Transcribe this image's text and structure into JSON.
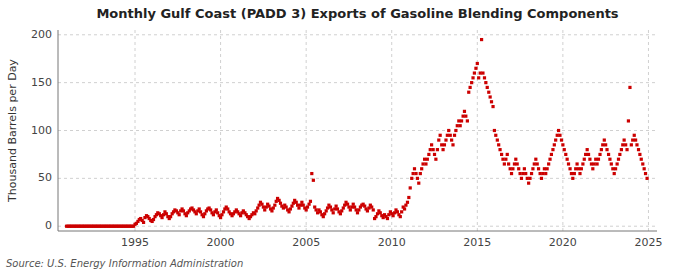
{
  "chart_data": {
    "type": "scatter",
    "title": "Monthly Gulf Coast (PADD 3) Exports of Gasoline Blending Components",
    "y_label": "Thousand Barrels per Day",
    "source": "Source: U.S. Energy Information Administration",
    "color": "#cc0000",
    "marker": "square",
    "grid": true,
    "xlim": [
      1990.5,
      2025.5
    ],
    "ylim": [
      -5,
      205
    ],
    "xticks": [
      1995,
      2000,
      2005,
      2010,
      2015,
      2020,
      2025
    ],
    "yticks": [
      0,
      50,
      100,
      150,
      200
    ],
    "x": [
      1991.0,
      1991.08,
      1991.17,
      1991.25,
      1991.33,
      1991.42,
      1991.5,
      1991.58,
      1991.67,
      1991.75,
      1991.83,
      1991.92,
      1992.0,
      1992.08,
      1992.17,
      1992.25,
      1992.33,
      1992.42,
      1992.5,
      1992.58,
      1992.67,
      1992.75,
      1992.83,
      1992.92,
      1993.0,
      1993.08,
      1993.17,
      1993.25,
      1993.33,
      1993.42,
      1993.5,
      1993.58,
      1993.67,
      1993.75,
      1993.83,
      1993.92,
      1994.0,
      1994.08,
      1994.17,
      1994.25,
      1994.33,
      1994.42,
      1994.5,
      1994.58,
      1994.67,
      1994.75,
      1994.83,
      1994.92,
      1995.0,
      1995.08,
      1995.17,
      1995.25,
      1995.33,
      1995.42,
      1995.5,
      1995.58,
      1995.67,
      1995.75,
      1995.83,
      1995.92,
      1996.0,
      1996.08,
      1996.17,
      1996.25,
      1996.33,
      1996.42,
      1996.5,
      1996.58,
      1996.67,
      1996.75,
      1996.83,
      1996.92,
      1997.0,
      1997.08,
      1997.17,
      1997.25,
      1997.33,
      1997.42,
      1997.5,
      1997.58,
      1997.67,
      1997.75,
      1997.83,
      1997.92,
      1998.0,
      1998.08,
      1998.17,
      1998.25,
      1998.33,
      1998.42,
      1998.5,
      1998.58,
      1998.67,
      1998.75,
      1998.83,
      1998.92,
      1999.0,
      1999.08,
      1999.17,
      1999.25,
      1999.33,
      1999.42,
      1999.5,
      1999.58,
      1999.67,
      1999.75,
      1999.83,
      1999.92,
      2000.0,
      2000.08,
      2000.17,
      2000.25,
      2000.33,
      2000.42,
      2000.5,
      2000.58,
      2000.67,
      2000.75,
      2000.83,
      2000.92,
      2001.0,
      2001.08,
      2001.17,
      2001.25,
      2001.33,
      2001.42,
      2001.5,
      2001.58,
      2001.67,
      2001.75,
      2001.83,
      2001.92,
      2002.0,
      2002.08,
      2002.17,
      2002.25,
      2002.33,
      2002.42,
      2002.5,
      2002.58,
      2002.67,
      2002.75,
      2002.83,
      2002.92,
      2003.0,
      2003.08,
      2003.17,
      2003.25,
      2003.33,
      2003.42,
      2003.5,
      2003.58,
      2003.67,
      2003.75,
      2003.83,
      2003.92,
      2004.0,
      2004.08,
      2004.17,
      2004.25,
      2004.33,
      2004.42,
      2004.5,
      2004.58,
      2004.67,
      2004.75,
      2004.83,
      2004.92,
      2005.0,
      2005.08,
      2005.17,
      2005.25,
      2005.33,
      2005.42,
      2005.5,
      2005.58,
      2005.67,
      2005.75,
      2005.83,
      2005.92,
      2006.0,
      2006.08,
      2006.17,
      2006.25,
      2006.33,
      2006.42,
      2006.5,
      2006.58,
      2006.67,
      2006.75,
      2006.83,
      2006.92,
      2007.0,
      2007.08,
      2007.17,
      2007.25,
      2007.33,
      2007.42,
      2007.5,
      2007.58,
      2007.67,
      2007.75,
      2007.83,
      2007.92,
      2008.0,
      2008.08,
      2008.17,
      2008.25,
      2008.33,
      2008.42,
      2008.5,
      2008.58,
      2008.67,
      2008.75,
      2008.83,
      2008.92,
      2009.0,
      2009.08,
      2009.17,
      2009.25,
      2009.33,
      2009.42,
      2009.5,
      2009.58,
      2009.67,
      2009.75,
      2009.83,
      2009.92,
      2010.0,
      2010.08,
      2010.17,
      2010.25,
      2010.33,
      2010.42,
      2010.5,
      2010.58,
      2010.67,
      2010.75,
      2010.83,
      2010.92,
      2011.0,
      2011.08,
      2011.17,
      2011.25,
      2011.33,
      2011.42,
      2011.5,
      2011.58,
      2011.67,
      2011.75,
      2011.83,
      2011.92,
      2012.0,
      2012.08,
      2012.17,
      2012.25,
      2012.33,
      2012.42,
      2012.5,
      2012.58,
      2012.67,
      2012.75,
      2012.83,
      2012.92,
      2013.0,
      2013.08,
      2013.17,
      2013.25,
      2013.33,
      2013.42,
      2013.5,
      2013.58,
      2013.67,
      2013.75,
      2013.83,
      2013.92,
      2014.0,
      2014.08,
      2014.17,
      2014.25,
      2014.33,
      2014.42,
      2014.5,
      2014.58,
      2014.67,
      2014.75,
      2014.83,
      2014.92,
      2015.0,
      2015.08,
      2015.17,
      2015.25,
      2015.33,
      2015.42,
      2015.5,
      2015.58,
      2015.67,
      2015.75,
      2015.83,
      2015.92,
      2016.0,
      2016.08,
      2016.17,
      2016.25,
      2016.33,
      2016.42,
      2016.5,
      2016.58,
      2016.67,
      2016.75,
      2016.83,
      2016.92,
      2017.0,
      2017.08,
      2017.17,
      2017.25,
      2017.33,
      2017.42,
      2017.5,
      2017.58,
      2017.67,
      2017.75,
      2017.83,
      2017.92,
      2018.0,
      2018.08,
      2018.17,
      2018.25,
      2018.33,
      2018.42,
      2018.5,
      2018.58,
      2018.67,
      2018.75,
      2018.83,
      2018.92,
      2019.0,
      2019.08,
      2019.17,
      2019.25,
      2019.33,
      2019.42,
      2019.5,
      2019.58,
      2019.67,
      2019.75,
      2019.83,
      2019.92,
      2020.0,
      2020.08,
      2020.17,
      2020.25,
      2020.33,
      2020.42,
      2020.5,
      2020.58,
      2020.67,
      2020.75,
      2020.83,
      2020.92,
      2021.0,
      2021.08,
      2021.17,
      2021.25,
      2021.33,
      2021.42,
      2021.5,
      2021.58,
      2021.67,
      2021.75,
      2021.83,
      2021.92,
      2022.0,
      2022.08,
      2022.17,
      2022.25,
      2022.33,
      2022.42,
      2022.5,
      2022.58,
      2022.67,
      2022.75,
      2022.83,
      2022.92,
      2023.0,
      2023.08,
      2023.17,
      2023.25,
      2023.33,
      2023.42,
      2023.5,
      2023.58,
      2023.67,
      2023.75,
      2023.83,
      2023.92,
      2024.0,
      2024.08,
      2024.17,
      2024.25,
      2024.33,
      2024.42,
      2024.5,
      2024.58,
      2024.67,
      2024.75,
      2024.83,
      2024.92
    ],
    "values": [
      0,
      0,
      0,
      0,
      0,
      0,
      0,
      0,
      0,
      0,
      0,
      0,
      0,
      0,
      0,
      0,
      0,
      0,
      0,
      0,
      0,
      0,
      0,
      0,
      0,
      0,
      0,
      0,
      0,
      0,
      0,
      0,
      0,
      0,
      0,
      0,
      0,
      0,
      0,
      0,
      0,
      0,
      0,
      0,
      0,
      0,
      0,
      0,
      2,
      3,
      5,
      7,
      8,
      6,
      4,
      9,
      11,
      10,
      8,
      6,
      5,
      7,
      10,
      12,
      14,
      13,
      11,
      9,
      12,
      15,
      13,
      10,
      8,
      10,
      13,
      15,
      17,
      16,
      14,
      12,
      16,
      18,
      16,
      13,
      11,
      14,
      16,
      18,
      19,
      17,
      15,
      13,
      16,
      18,
      15,
      12,
      10,
      13,
      16,
      18,
      19,
      17,
      14,
      12,
      15,
      17,
      14,
      11,
      9,
      12,
      15,
      18,
      20,
      18,
      15,
      13,
      11,
      13,
      15,
      17,
      15,
      13,
      11,
      14,
      16,
      14,
      12,
      10,
      8,
      10,
      12,
      14,
      13,
      16,
      19,
      22,
      25,
      23,
      20,
      17,
      20,
      23,
      21,
      18,
      16,
      19,
      22,
      26,
      29,
      27,
      24,
      21,
      19,
      22,
      20,
      17,
      15,
      18,
      21,
      24,
      27,
      25,
      22,
      19,
      22,
      25,
      22,
      19,
      17,
      20,
      23,
      26,
      55,
      48,
      20,
      17,
      14,
      17,
      15,
      12,
      10,
      13,
      16,
      19,
      22,
      20,
      17,
      14,
      18,
      21,
      18,
      15,
      13,
      16,
      19,
      22,
      25,
      23,
      20,
      17,
      20,
      23,
      20,
      17,
      14,
      17,
      20,
      22,
      23,
      21,
      18,
      16,
      19,
      22,
      20,
      17,
      8,
      10,
      13,
      16,
      14,
      11,
      9,
      12,
      10,
      8,
      12,
      15,
      13,
      11,
      14,
      17,
      15,
      12,
      10,
      15,
      20,
      18,
      22,
      25,
      30,
      40,
      50,
      55,
      60,
      55,
      50,
      45,
      55,
      60,
      65,
      70,
      65,
      70,
      75,
      80,
      85,
      80,
      75,
      70,
      80,
      90,
      95,
      85,
      80,
      85,
      90,
      95,
      100,
      95,
      90,
      85,
      95,
      100,
      105,
      110,
      105,
      110,
      115,
      120,
      115,
      110,
      140,
      145,
      150,
      155,
      160,
      165,
      170,
      155,
      160,
      195,
      160,
      155,
      150,
      145,
      140,
      135,
      130,
      125,
      100,
      95,
      90,
      85,
      80,
      75,
      70,
      65,
      70,
      75,
      65,
      60,
      55,
      60,
      65,
      70,
      65,
      60,
      55,
      50,
      55,
      60,
      55,
      50,
      45,
      50,
      55,
      60,
      65,
      70,
      65,
      60,
      55,
      50,
      55,
      60,
      55,
      60,
      65,
      70,
      75,
      80,
      85,
      90,
      95,
      100,
      95,
      90,
      85,
      80,
      75,
      70,
      65,
      60,
      55,
      50,
      55,
      60,
      65,
      60,
      55,
      60,
      65,
      70,
      75,
      80,
      75,
      70,
      65,
      60,
      65,
      70,
      65,
      70,
      75,
      80,
      85,
      90,
      85,
      80,
      75,
      70,
      65,
      60,
      55,
      60,
      65,
      70,
      75,
      80,
      85,
      90,
      85,
      80,
      110,
      145,
      85,
      90,
      95,
      90,
      85,
      80,
      75,
      70,
      65,
      60,
      55,
      50
    ]
  }
}
